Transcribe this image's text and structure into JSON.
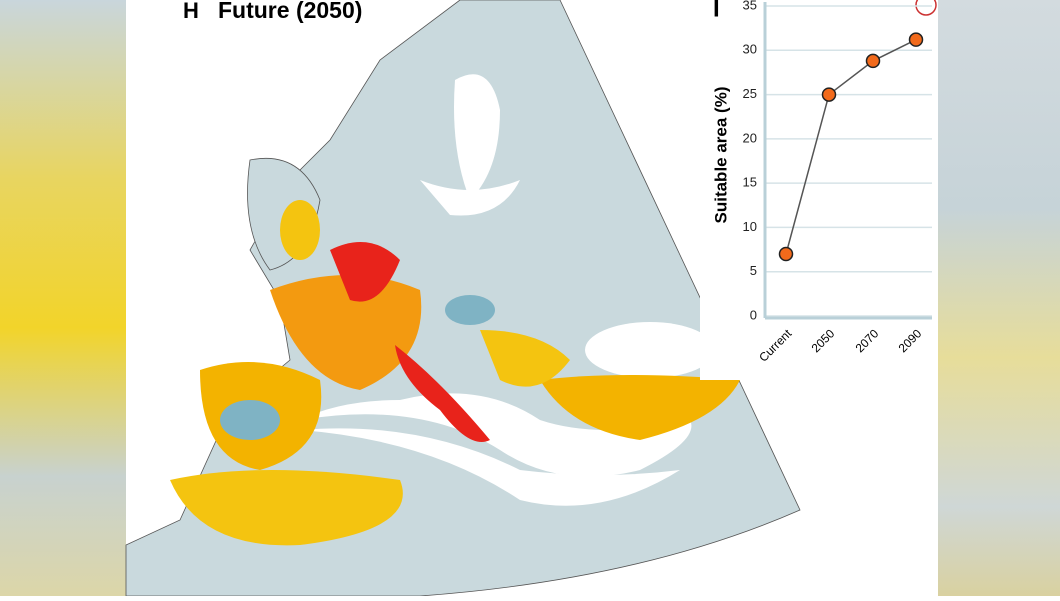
{
  "panel_h": {
    "label": "H",
    "title": "Future (2050)"
  },
  "chart_data": {
    "type": "line",
    "panel_label": "I",
    "ylabel": "Suitable area (%)",
    "categories": [
      "Current",
      "2050",
      "2070",
      "2090"
    ],
    "values": [
      7,
      25,
      28.8,
      31.2
    ],
    "color": "#f26a1b",
    "ylim": [
      0,
      35
    ],
    "yticks": [
      0,
      5,
      10,
      15,
      20,
      25,
      30,
      35
    ],
    "grid": true
  }
}
